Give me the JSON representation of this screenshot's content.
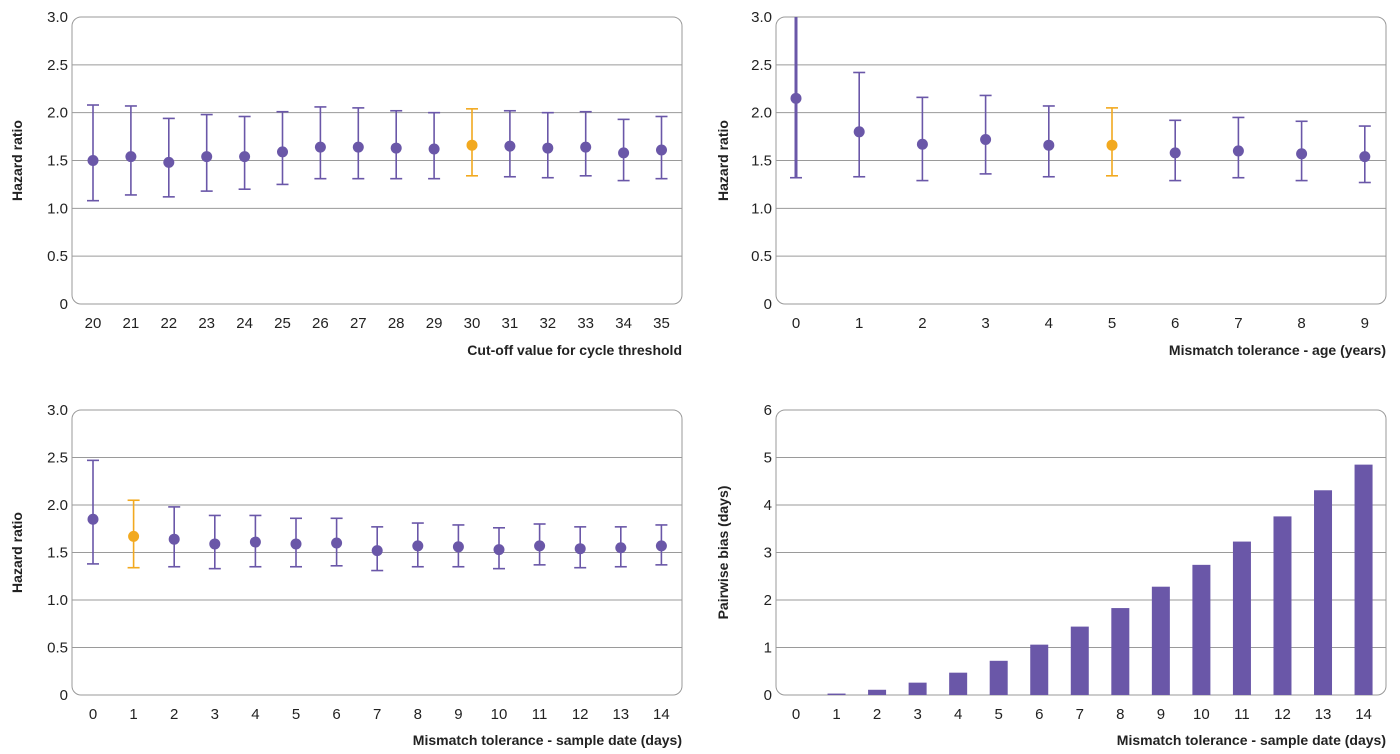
{
  "colors": {
    "main": "#6a57a8",
    "highlight": "#f2a91f",
    "frame": "#9a9a9a"
  },
  "chart_data": [
    {
      "type": "scatter",
      "id": "panel-a",
      "x": [
        20,
        21,
        22,
        23,
        24,
        25,
        26,
        27,
        28,
        29,
        30,
        31,
        32,
        33,
        34,
        35
      ],
      "y": [
        1.5,
        1.54,
        1.48,
        1.54,
        1.54,
        1.59,
        1.64,
        1.64,
        1.63,
        1.62,
        1.66,
        1.65,
        1.63,
        1.64,
        1.58,
        1.61
      ],
      "ci_low": [
        1.08,
        1.14,
        1.12,
        1.18,
        1.2,
        1.25,
        1.31,
        1.31,
        1.31,
        1.31,
        1.34,
        1.33,
        1.32,
        1.34,
        1.29,
        1.31
      ],
      "ci_high": [
        2.08,
        2.07,
        1.94,
        1.98,
        1.96,
        2.01,
        2.06,
        2.05,
        2.02,
        2.0,
        2.04,
        2.02,
        2.0,
        2.01,
        1.93,
        1.96
      ],
      "highlight_x": 30,
      "xlabel": "Cut-off value for cycle threshold",
      "ylabel": "Hazard ratio",
      "ylim": [
        0,
        3.0
      ],
      "yticks": [
        "0",
        "0.5",
        "1.0",
        "1.5",
        "2.0",
        "2.5",
        "3.0"
      ],
      "grid": true
    },
    {
      "type": "scatter",
      "id": "panel-b",
      "x": [
        0,
        1,
        2,
        3,
        4,
        5,
        6,
        7,
        8,
        9
      ],
      "y": [
        2.15,
        1.8,
        1.67,
        1.72,
        1.66,
        1.66,
        1.58,
        1.6,
        1.57,
        1.54
      ],
      "ci_low": [
        1.32,
        1.33,
        1.29,
        1.36,
        1.33,
        1.34,
        1.29,
        1.32,
        1.29,
        1.27
      ],
      "ci_high": [
        3.0,
        2.42,
        2.16,
        2.18,
        2.07,
        2.05,
        1.92,
        1.95,
        1.91,
        1.86
      ],
      "highlight_x": 5,
      "xlabel": "Mismatch tolerance - age (years)",
      "ylabel": "Hazard ratio",
      "ylim": [
        0,
        3.0
      ],
      "yticks": [
        "0",
        "0.5",
        "1.0",
        "1.5",
        "2.0",
        "2.5",
        "3.0"
      ],
      "grid": true
    },
    {
      "type": "scatter",
      "id": "panel-c",
      "x": [
        0,
        1,
        2,
        3,
        4,
        5,
        6,
        7,
        8,
        9,
        10,
        11,
        12,
        13,
        14
      ],
      "y": [
        1.85,
        1.67,
        1.64,
        1.59,
        1.61,
        1.59,
        1.6,
        1.52,
        1.57,
        1.56,
        1.53,
        1.57,
        1.54,
        1.55,
        1.57
      ],
      "ci_low": [
        1.38,
        1.34,
        1.35,
        1.33,
        1.35,
        1.35,
        1.36,
        1.31,
        1.35,
        1.35,
        1.33,
        1.37,
        1.34,
        1.35,
        1.37
      ],
      "ci_high": [
        2.47,
        2.05,
        1.98,
        1.89,
        1.89,
        1.86,
        1.86,
        1.77,
        1.81,
        1.79,
        1.76,
        1.8,
        1.77,
        1.77,
        1.79
      ],
      "highlight_x": 1,
      "xlabel": "Mismatch tolerance - sample date (days)",
      "ylabel": "Hazard ratio",
      "ylim": [
        0,
        3.0
      ],
      "yticks": [
        "0",
        "0.5",
        "1.0",
        "1.5",
        "2.0",
        "2.5",
        "3.0"
      ],
      "grid": true
    },
    {
      "type": "bar",
      "id": "panel-d",
      "categories": [
        "0",
        "1",
        "2",
        "3",
        "4",
        "5",
        "6",
        "7",
        "8",
        "9",
        "10",
        "11",
        "12",
        "13",
        "14"
      ],
      "values": [
        0.0,
        0.03,
        0.11,
        0.26,
        0.47,
        0.72,
        1.06,
        1.44,
        1.83,
        2.28,
        2.74,
        3.23,
        3.76,
        4.31,
        4.85
      ],
      "xlabel": "Mismatch tolerance - sample date (days)",
      "ylabel": "Pairwise bias (days)",
      "ylim": [
        0,
        6
      ],
      "yticks": [
        "0",
        "1",
        "2",
        "3",
        "4",
        "5",
        "6"
      ],
      "grid": true
    }
  ]
}
